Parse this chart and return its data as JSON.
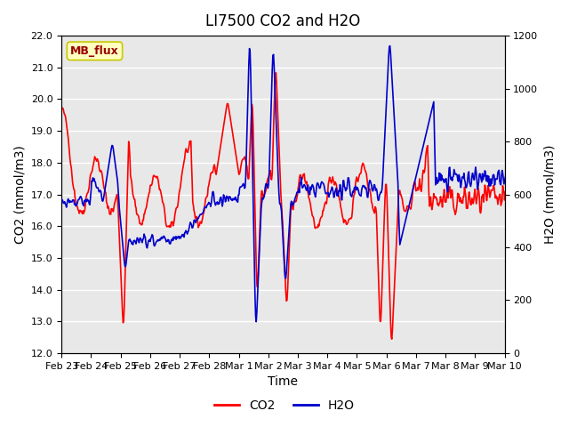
{
  "title": "LI7500 CO2 and H2O",
  "xlabel": "Time",
  "ylabel_left": "CO2 (mmol/m3)",
  "ylabel_right": "H2O (mmol/m3)",
  "ylim_left": [
    12.0,
    22.0
  ],
  "ylim_right": [
    0,
    1200
  ],
  "xtick_labels": [
    "Feb 23",
    "Feb 24",
    "Feb 25",
    "Feb 26",
    "Feb 27",
    "Feb 28",
    "Mar 1",
    "Mar 2",
    "Mar 3",
    "Mar 4",
    "Mar 5",
    "Mar 6",
    "Mar 7",
    "Mar 8",
    "Mar 9",
    "Mar 10"
  ],
  "co2_color": "#FF0000",
  "h2o_color": "#0000CC",
  "bg_color": "#E8E8E8",
  "annotation_text": "MB_flux",
  "annotation_bg": "#FFFFC0",
  "annotation_border": "#C8C800",
  "annotation_text_color": "#990000",
  "legend_co2": "CO2",
  "legend_h2o": "H2O",
  "grid_color": "white",
  "linewidth": 1.2,
  "title_fontsize": 12,
  "label_fontsize": 10,
  "tick_fontsize": 8
}
